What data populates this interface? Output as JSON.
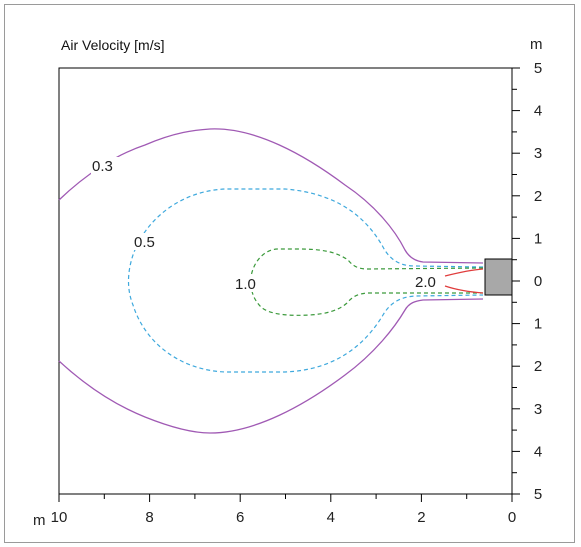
{
  "title": "Air Velocity [m/s]",
  "x_axis": {
    "unit_label": "m",
    "range": [
      10,
      0
    ],
    "major_ticks": [
      10,
      8,
      6,
      4,
      2,
      0
    ],
    "tick_labels": [
      "10",
      "8",
      "6",
      "4",
      "2",
      "0"
    ]
  },
  "y_axis": {
    "unit_label": "m",
    "range": [
      -5,
      5
    ],
    "major_ticks": [
      5,
      4,
      3,
      2,
      1,
      0,
      -1,
      -2,
      -3,
      -4,
      -5
    ],
    "tick_labels": [
      "5",
      "4",
      "3",
      "2",
      "1",
      "0",
      "1",
      "2",
      "3",
      "4",
      "5"
    ]
  },
  "contours": [
    {
      "label": "0.3",
      "color": "#a05ab4",
      "dashed": false
    },
    {
      "label": "0.5",
      "color": "#3fa9dd",
      "dashed": true
    },
    {
      "label": "1.0",
      "color": "#3c9a3c",
      "dashed": true
    },
    {
      "label": "2.0",
      "color": "#e03c3c",
      "dashed": false
    }
  ],
  "outlet": {
    "color": "#a8a8a8",
    "x_range": [
      0,
      0.55
    ],
    "y_range": [
      -0.35,
      0.45
    ]
  }
}
